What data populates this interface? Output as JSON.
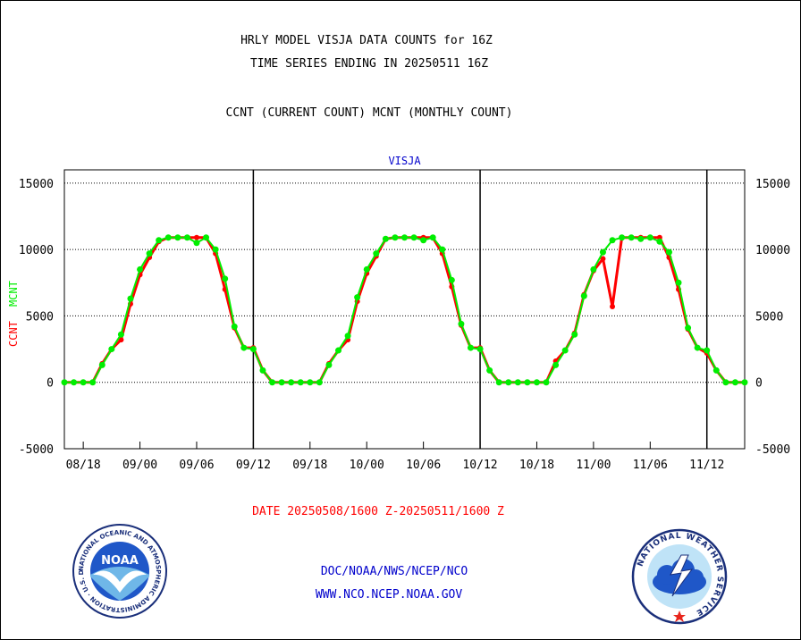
{
  "header": {
    "title_line1": "HRLY MODEL VISJA DATA COUNTS for 16Z",
    "title_line2": "TIME SERIES ENDING IN 20250511 16Z",
    "legend_line": "CCNT (CURRENT COUNT) MCNT (MONTHLY COUNT)"
  },
  "footer": {
    "date_range": "DATE 20250508/1600 Z-20250511/1600 Z",
    "org": "DOC/NOAA/NWS/NCEP/NCO",
    "url": "WWW.NCO.NCEP.NOAA.GOV"
  },
  "logos": {
    "noaa_text": "NOAA",
    "noaa_ring": "NATIONAL OCEANIC AND ATMOSPHERIC ADMINISTRATION · U.S. DEPARTMENT OF COMMERCE ·",
    "nws_ring": "NATIONAL WEATHER SERVICE"
  },
  "chart_data": {
    "type": "line",
    "title": "VISJA",
    "ylabel_left_red": "CCNT",
    "ylabel_left_green": "MCNT",
    "ylim": [
      -5000,
      16000
    ],
    "yticks": [
      15000,
      10000,
      5000,
      0,
      -5000
    ],
    "ytick_labels": [
      "15000",
      "10000",
      "5000",
      "0",
      "-5000"
    ],
    "xlim": [
      0,
      72
    ],
    "xticks": [
      {
        "x": 2,
        "label": "08/18"
      },
      {
        "x": 8,
        "label": "09/00"
      },
      {
        "x": 14,
        "label": "09/06"
      },
      {
        "x": 20,
        "label": "09/12"
      },
      {
        "x": 26,
        "label": "09/18"
      },
      {
        "x": 32,
        "label": "10/00"
      },
      {
        "x": 38,
        "label": "10/06"
      },
      {
        "x": 44,
        "label": "10/12"
      },
      {
        "x": 50,
        "label": "10/18"
      },
      {
        "x": 56,
        "label": "11/00"
      },
      {
        "x": 62,
        "label": "11/06"
      },
      {
        "x": 68,
        "label": "11/12"
      }
    ],
    "day_boundaries": [
      20,
      44,
      68
    ],
    "grid": true,
    "colors": {
      "ccnt": "#ff0000",
      "mcnt": "#00ee00",
      "title": "#0000cc",
      "grid": "#000000"
    },
    "series": [
      {
        "name": "CCNT",
        "color": "#ff0000",
        "points": [
          [
            0,
            0
          ],
          [
            1,
            0
          ],
          [
            2,
            0
          ],
          [
            3,
            0
          ],
          [
            4,
            1400
          ],
          [
            5,
            2500
          ],
          [
            6,
            3200
          ],
          [
            7,
            5900
          ],
          [
            8,
            8100
          ],
          [
            9,
            9400
          ],
          [
            10,
            10600
          ],
          [
            11,
            10900
          ],
          [
            12,
            10900
          ],
          [
            13,
            10900
          ],
          [
            14,
            10900
          ],
          [
            15,
            10900
          ],
          [
            16,
            9700
          ],
          [
            17,
            7000
          ],
          [
            18,
            4100
          ],
          [
            19,
            2600
          ],
          [
            20,
            2600
          ],
          [
            21,
            900
          ],
          [
            22,
            0
          ],
          [
            23,
            0
          ],
          [
            24,
            0
          ],
          [
            25,
            0
          ],
          [
            26,
            0
          ],
          [
            27,
            0
          ],
          [
            28,
            1400
          ],
          [
            29,
            2400
          ],
          [
            30,
            3200
          ],
          [
            31,
            6100
          ],
          [
            32,
            8200
          ],
          [
            33,
            9500
          ],
          [
            34,
            10800
          ],
          [
            35,
            10900
          ],
          [
            36,
            10900
          ],
          [
            37,
            10900
          ],
          [
            38,
            10900
          ],
          [
            39,
            10900
          ],
          [
            40,
            9700
          ],
          [
            41,
            7200
          ],
          [
            42,
            4300
          ],
          [
            43,
            2600
          ],
          [
            44,
            2600
          ],
          [
            45,
            900
          ],
          [
            46,
            0
          ],
          [
            47,
            0
          ],
          [
            48,
            0
          ],
          [
            49,
            0
          ],
          [
            50,
            0
          ],
          [
            51,
            0
          ],
          [
            52,
            1600
          ],
          [
            53,
            2400
          ],
          [
            54,
            3700
          ],
          [
            55,
            6600
          ],
          [
            56,
            8400
          ],
          [
            57,
            9300
          ],
          [
            58,
            5700
          ],
          [
            59,
            10900
          ],
          [
            60,
            10900
          ],
          [
            61,
            10900
          ],
          [
            62,
            10900
          ],
          [
            63,
            10900
          ],
          [
            64,
            9400
          ],
          [
            65,
            7000
          ],
          [
            66,
            4000
          ],
          [
            67,
            2600
          ],
          [
            68,
            2200
          ],
          [
            69,
            900
          ],
          [
            70,
            0
          ],
          [
            71,
            0
          ],
          [
            72,
            0
          ]
        ]
      },
      {
        "name": "MCNT",
        "color": "#00ee00",
        "points": [
          [
            0,
            0
          ],
          [
            1,
            0
          ],
          [
            2,
            0
          ],
          [
            3,
            0
          ],
          [
            4,
            1300
          ],
          [
            5,
            2500
          ],
          [
            6,
            3600
          ],
          [
            7,
            6300
          ],
          [
            8,
            8500
          ],
          [
            9,
            9700
          ],
          [
            10,
            10700
          ],
          [
            11,
            10900
          ],
          [
            12,
            10900
          ],
          [
            13,
            10900
          ],
          [
            14,
            10500
          ],
          [
            15,
            10900
          ],
          [
            16,
            10000
          ],
          [
            17,
            7800
          ],
          [
            18,
            4200
          ],
          [
            19,
            2600
          ],
          [
            20,
            2500
          ],
          [
            21,
            900
          ],
          [
            22,
            0
          ],
          [
            23,
            0
          ],
          [
            24,
            0
          ],
          [
            25,
            0
          ],
          [
            26,
            0
          ],
          [
            27,
            0
          ],
          [
            28,
            1300
          ],
          [
            29,
            2400
          ],
          [
            30,
            3500
          ],
          [
            31,
            6400
          ],
          [
            32,
            8500
          ],
          [
            33,
            9700
          ],
          [
            34,
            10800
          ],
          [
            35,
            10900
          ],
          [
            36,
            10900
          ],
          [
            37,
            10900
          ],
          [
            38,
            10700
          ],
          [
            39,
            10900
          ],
          [
            40,
            10000
          ],
          [
            41,
            7700
          ],
          [
            42,
            4400
          ],
          [
            43,
            2600
          ],
          [
            44,
            2500
          ],
          [
            45,
            900
          ],
          [
            46,
            0
          ],
          [
            47,
            0
          ],
          [
            48,
            0
          ],
          [
            49,
            0
          ],
          [
            50,
            0
          ],
          [
            51,
            0
          ],
          [
            52,
            1300
          ],
          [
            53,
            2400
          ],
          [
            54,
            3600
          ],
          [
            55,
            6500
          ],
          [
            56,
            8500
          ],
          [
            57,
            9800
          ],
          [
            58,
            10700
          ],
          [
            59,
            10900
          ],
          [
            60,
            10900
          ],
          [
            61,
            10800
          ],
          [
            62,
            10900
          ],
          [
            63,
            10600
          ],
          [
            64,
            9800
          ],
          [
            65,
            7500
          ],
          [
            66,
            4100
          ],
          [
            67,
            2600
          ],
          [
            68,
            2400
          ],
          [
            69,
            900
          ],
          [
            70,
            0
          ],
          [
            71,
            0
          ],
          [
            72,
            0
          ]
        ]
      }
    ]
  }
}
